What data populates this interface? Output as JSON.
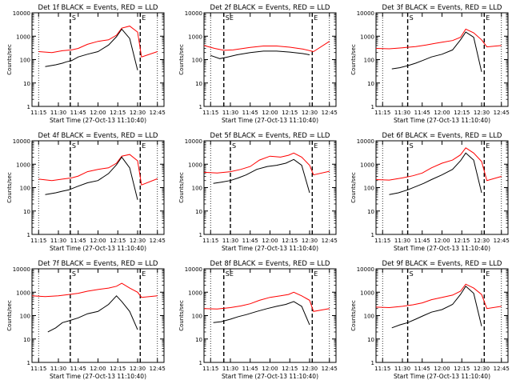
{
  "chart_data": [
    {
      "type": "line",
      "title": "Det 1f BLACK = Events, RED = LLD",
      "xlabel": "Start Time (27-Oct-13 11:10:40)",
      "ylabel": "Counts/sec",
      "yscale": "log",
      "ylim": [
        1,
        10000
      ],
      "xticks": [
        "11:15",
        "11:30",
        "11:45",
        "12:00",
        "12:15",
        "12:30",
        "12:45"
      ],
      "yticks": [
        "1",
        "10",
        "100",
        "1000",
        "10000"
      ],
      "grid": false,
      "legend": "in title",
      "markers": [
        {
          "label": "S",
          "time": "11:39"
        },
        {
          "label": "E",
          "time": "12:32"
        }
      ],
      "series": [
        {
          "name": "Events",
          "color": "#000000",
          "x": [
            "11:20",
            "11:28",
            "11:33",
            "11:36",
            "11:40",
            "11:45",
            "11:52",
            "12:00",
            "12:08",
            "12:14",
            "12:18",
            "12:24",
            "12:30"
          ],
          "y": [
            50,
            60,
            70,
            80,
            90,
            130,
            170,
            220,
            420,
            950,
            2000,
            800,
            35
          ]
        },
        {
          "name": "LLD",
          "color": "#ff0000",
          "x": [
            "11:15",
            "11:25",
            "11:33",
            "11:40",
            "11:45",
            "11:52",
            "12:00",
            "12:08",
            "12:14",
            "12:18",
            "12:24",
            "12:30",
            "12:33",
            "12:45"
          ],
          "y": [
            220,
            200,
            240,
            260,
            300,
            450,
            600,
            700,
            1100,
            2200,
            2700,
            1500,
            130,
            220
          ]
        }
      ]
    },
    {
      "type": "line",
      "title": "Det 2f BLACK = Events, RED = LLD",
      "xlabel": "Start Time (27-Oct-13 11:10:40)",
      "ylabel": "Counts/sec",
      "yscale": "log",
      "ylim": [
        1,
        10000
      ],
      "xticks": [
        "11:15",
        "11:30",
        "11:45",
        "12:00",
        "12:15",
        "12:30",
        "12:45"
      ],
      "yticks": [
        "1",
        "10",
        "100",
        "1000",
        "10000"
      ],
      "grid": false,
      "legend": "in title",
      "markers": [
        {
          "label": "SE",
          "time": "11:25"
        },
        {
          "label": "E",
          "time": "12:32"
        }
      ],
      "series": [
        {
          "name": "Events",
          "color": "#000000",
          "x": [
            "11:15",
            "11:22",
            "11:28",
            "11:35",
            "11:45",
            "11:55",
            "12:05",
            "12:15",
            "12:25",
            "12:30"
          ],
          "y": [
            150,
            110,
            130,
            160,
            200,
            230,
            230,
            210,
            180,
            160
          ]
        },
        {
          "name": "LLD",
          "color": "#ff0000",
          "x": [
            "11:10",
            "11:18",
            "11:25",
            "11:32",
            "11:45",
            "11:55",
            "12:05",
            "12:15",
            "12:25",
            "12:33",
            "12:45"
          ],
          "y": [
            400,
            300,
            250,
            260,
            330,
            380,
            380,
            340,
            280,
            220,
            600
          ]
        }
      ]
    },
    {
      "type": "line",
      "title": "Det 3f BLACK = Events, RED = LLD",
      "xlabel": "Start Time (27-Oct-13 11:10:40)",
      "ylabel": "Counts/sec",
      "yscale": "log",
      "ylim": [
        1,
        10000
      ],
      "xticks": [
        "11:15",
        "11:30",
        "11:45",
        "12:00",
        "12:15",
        "12:30",
        "12:45"
      ],
      "yticks": [
        "1",
        "10",
        "100",
        "1000",
        "10000"
      ],
      "grid": false,
      "legend": "in title",
      "markers": [
        {
          "label": "S",
          "time": "11:34"
        },
        {
          "label": "E",
          "time": "12:32"
        }
      ],
      "series": [
        {
          "name": "Events",
          "color": "#000000",
          "x": [
            "11:22",
            "11:28",
            "11:34",
            "11:40",
            "11:45",
            "11:52",
            "12:00",
            "12:08",
            "12:14",
            "12:18",
            "12:24",
            "12:30"
          ],
          "y": [
            40,
            45,
            55,
            70,
            90,
            130,
            170,
            260,
            700,
            1500,
            900,
            30
          ]
        },
        {
          "name": "LLD",
          "color": "#ff0000",
          "x": [
            "11:10",
            "11:20",
            "11:30",
            "11:40",
            "11:48",
            "11:55",
            "12:00",
            "12:08",
            "12:14",
            "12:18",
            "12:24",
            "12:30",
            "12:34",
            "12:45"
          ],
          "y": [
            300,
            290,
            320,
            360,
            420,
            500,
            550,
            650,
            900,
            2000,
            1400,
            700,
            350,
            400
          ]
        }
      ]
    },
    {
      "type": "line",
      "title": "Det 4f BLACK = Events, RED = LLD",
      "xlabel": "Start Time (27-Oct-13 11:10:40)",
      "ylabel": "Counts/sec",
      "yscale": "log",
      "ylim": [
        1,
        10000
      ],
      "xticks": [
        "11:15",
        "11:30",
        "11:45",
        "12:00",
        "12:15",
        "12:30",
        "12:45"
      ],
      "yticks": [
        "1",
        "10",
        "100",
        "1000",
        "10000"
      ],
      "grid": false,
      "legend": "in title",
      "markers": [
        {
          "label": "S",
          "time": "11:39"
        },
        {
          "label": "E",
          "time": "12:32"
        }
      ],
      "series": [
        {
          "name": "Events",
          "color": "#000000",
          "x": [
            "11:20",
            "11:28",
            "11:33",
            "11:38",
            "11:44",
            "11:52",
            "12:00",
            "12:08",
            "12:14",
            "12:18",
            "12:24",
            "12:30"
          ],
          "y": [
            50,
            60,
            70,
            80,
            110,
            160,
            200,
            400,
            950,
            2000,
            700,
            30
          ]
        },
        {
          "name": "LLD",
          "color": "#ff0000",
          "x": [
            "11:15",
            "11:25",
            "11:33",
            "11:40",
            "11:45",
            "11:52",
            "12:00",
            "12:08",
            "12:14",
            "12:18",
            "12:24",
            "12:30",
            "12:33",
            "12:45"
          ],
          "y": [
            230,
            200,
            230,
            260,
            310,
            480,
            600,
            700,
            1100,
            2200,
            2600,
            1400,
            130,
            240
          ]
        }
      ]
    },
    {
      "type": "line",
      "title": "Det 5f BLACK = Events, RED = LLD",
      "xlabel": "Start Time (27-Oct-13 11:10:40)",
      "ylabel": "Counts/sec",
      "yscale": "log",
      "ylim": [
        1,
        10000
      ],
      "xticks": [
        "11:15",
        "11:30",
        "11:45",
        "12:00",
        "12:15",
        "12:30",
        "12:45"
      ],
      "yticks": [
        "1",
        "10",
        "100",
        "1000",
        "10000"
      ],
      "grid": false,
      "legend": "in title",
      "markers": [
        {
          "label": "S",
          "time": "11:30"
        },
        {
          "label": "E",
          "time": "12:32"
        }
      ],
      "series": [
        {
          "name": "Events",
          "color": "#000000",
          "x": [
            "11:17",
            "11:23",
            "11:30",
            "11:36",
            "11:42",
            "11:50",
            "11:58",
            "12:05",
            "12:12",
            "12:18",
            "12:24",
            "12:30"
          ],
          "y": [
            150,
            170,
            200,
            260,
            350,
            600,
            800,
            900,
            1100,
            1600,
            900,
            60
          ]
        },
        {
          "name": "LLD",
          "color": "#ff0000",
          "x": [
            "11:10",
            "11:20",
            "11:30",
            "11:38",
            "11:45",
            "11:52",
            "12:00",
            "12:08",
            "12:14",
            "12:18",
            "12:24",
            "12:30",
            "12:33",
            "12:45"
          ],
          "y": [
            450,
            420,
            480,
            600,
            800,
            1500,
            2200,
            2000,
            2400,
            3000,
            2000,
            900,
            350,
            500
          ]
        }
      ]
    },
    {
      "type": "line",
      "title": "Det 6f BLACK = Events, RED = LLD",
      "xlabel": "Start Time (27-Oct-13 11:10:40)",
      "ylabel": "Counts/sec",
      "yscale": "log",
      "ylim": [
        1,
        10000
      ],
      "xticks": [
        "11:15",
        "11:30",
        "11:45",
        "12:00",
        "12:15",
        "12:30",
        "12:45"
      ],
      "yticks": [
        "1",
        "10",
        "100",
        "1000",
        "10000"
      ],
      "grid": false,
      "legend": "in title",
      "markers": [
        {
          "label": "S",
          "time": "11:34"
        },
        {
          "label": "E",
          "time": "12:32"
        }
      ],
      "series": [
        {
          "name": "Events",
          "color": "#000000",
          "x": [
            "11:20",
            "11:27",
            "11:34",
            "11:40",
            "11:46",
            "11:52",
            "12:00",
            "12:08",
            "12:14",
            "12:18",
            "12:24",
            "12:30"
          ],
          "y": [
            50,
            60,
            80,
            110,
            150,
            220,
            350,
            600,
            1400,
            3000,
            1500,
            60
          ]
        },
        {
          "name": "LLD",
          "color": "#ff0000",
          "x": [
            "11:10",
            "11:20",
            "11:30",
            "11:38",
            "11:45",
            "11:52",
            "12:00",
            "12:08",
            "12:14",
            "12:18",
            "12:24",
            "12:30",
            "12:34",
            "12:45"
          ],
          "y": [
            220,
            210,
            260,
            320,
            420,
            700,
            1100,
            1500,
            2500,
            5000,
            3000,
            1300,
            200,
            300
          ]
        }
      ]
    },
    {
      "type": "line",
      "title": "Det 7f BLACK = Events, RED = LLD",
      "xlabel": "Start Time (27-Oct-13 11:10:40)",
      "ylabel": "Counts/sec",
      "yscale": "log",
      "ylim": [
        1,
        10000
      ],
      "xticks": [
        "11:15",
        "11:30",
        "11:45",
        "12:00",
        "12:15",
        "12:30",
        "12:45"
      ],
      "yticks": [
        "1",
        "10",
        "100",
        "1000",
        "10000"
      ],
      "grid": false,
      "legend": "in title",
      "markers": [
        {
          "label": "S",
          "time": "11:39"
        },
        {
          "label": "E",
          "time": "12:32"
        }
      ],
      "series": [
        {
          "name": "Events",
          "color": "#000000",
          "x": [
            "11:22",
            "11:28",
            "11:33",
            "11:38",
            "11:45",
            "11:52",
            "12:00",
            "12:08",
            "12:14",
            "12:18",
            "12:24",
            "12:30"
          ],
          "y": [
            20,
            30,
            50,
            60,
            80,
            120,
            150,
            300,
            700,
            400,
            150,
            25
          ]
        },
        {
          "name": "LLD",
          "color": "#ff0000",
          "x": [
            "11:10",
            "11:20",
            "11:30",
            "11:38",
            "11:45",
            "11:52",
            "12:00",
            "12:08",
            "12:14",
            "12:18",
            "12:24",
            "12:30",
            "12:33",
            "12:45"
          ],
          "y": [
            700,
            650,
            700,
            800,
            900,
            1100,
            1300,
            1500,
            1800,
            2400,
            1500,
            1000,
            600,
            700
          ]
        }
      ]
    },
    {
      "type": "line",
      "title": "Det 8f BLACK = Events, RED = LLD",
      "xlabel": "Start Time (27-Oct-13 11:10:40)",
      "ylabel": "Counts/sec",
      "yscale": "log",
      "ylim": [
        1,
        10000
      ],
      "xticks": [
        "11:15",
        "11:30",
        "11:45",
        "12:00",
        "12:15",
        "12:30",
        "12:45"
      ],
      "yticks": [
        "1",
        "10",
        "100",
        "1000",
        "10000"
      ],
      "grid": false,
      "legend": "in title",
      "markers": [
        {
          "label": "SE",
          "time": "11:25"
        },
        {
          "label": "E",
          "time": "12:32"
        }
      ],
      "series": [
        {
          "name": "Events",
          "color": "#000000",
          "x": [
            "11:17",
            "11:23",
            "11:30",
            "11:36",
            "11:42",
            "11:50",
            "11:58",
            "12:05",
            "12:12",
            "12:18",
            "12:24",
            "12:30"
          ],
          "y": [
            50,
            55,
            70,
            90,
            110,
            150,
            200,
            250,
            300,
            400,
            250,
            40
          ]
        },
        {
          "name": "LLD",
          "color": "#ff0000",
          "x": [
            "11:10",
            "11:20",
            "11:30",
            "11:38",
            "11:45",
            "11:52",
            "12:00",
            "12:08",
            "12:14",
            "12:18",
            "12:24",
            "12:30",
            "12:33",
            "12:45"
          ],
          "y": [
            200,
            190,
            220,
            260,
            320,
            450,
            600,
            700,
            800,
            1000,
            700,
            450,
            150,
            200
          ]
        }
      ]
    },
    {
      "type": "line",
      "title": "Det 9f BLACK = Events, RED = LLD",
      "xlabel": "Start Time (27-Oct-13 11:10:40)",
      "ylabel": "Counts/sec",
      "yscale": "log",
      "ylim": [
        1,
        10000
      ],
      "xticks": [
        "11:15",
        "11:30",
        "11:45",
        "12:00",
        "12:15",
        "12:30",
        "12:45"
      ],
      "yticks": [
        "1",
        "10",
        "100",
        "1000",
        "10000"
      ],
      "grid": false,
      "legend": "in title",
      "markers": [
        {
          "label": "S",
          "time": "11:34"
        },
        {
          "label": "E",
          "time": "12:32"
        }
      ],
      "series": [
        {
          "name": "Events",
          "color": "#000000",
          "x": [
            "11:22",
            "11:28",
            "11:34",
            "11:40",
            "11:46",
            "11:52",
            "12:00",
            "12:08",
            "12:14",
            "12:18",
            "12:24",
            "12:30"
          ],
          "y": [
            30,
            40,
            50,
            70,
            100,
            140,
            180,
            300,
            800,
            1800,
            900,
            35
          ]
        },
        {
          "name": "LLD",
          "color": "#ff0000",
          "x": [
            "11:10",
            "11:20",
            "11:30",
            "11:38",
            "11:45",
            "11:52",
            "12:00",
            "12:08",
            "12:14",
            "12:18",
            "12:24",
            "12:30",
            "12:34",
            "12:45"
          ],
          "y": [
            230,
            220,
            250,
            290,
            350,
            480,
            600,
            750,
            1100,
            2200,
            1500,
            800,
            200,
            250
          ]
        }
      ]
    }
  ]
}
